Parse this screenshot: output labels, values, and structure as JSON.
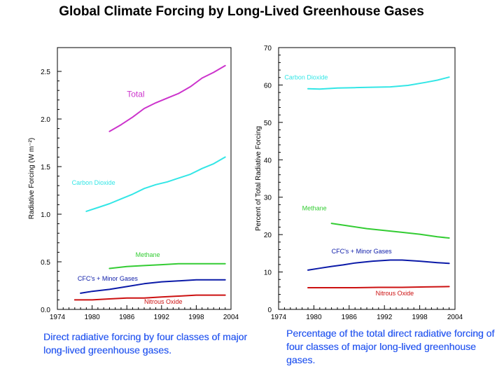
{
  "title": "Global Climate Forcing by Long-Lived Greenhouse Gases",
  "captions": {
    "left": "Direct radiative forcing by four classes of major long-lived greenhouse gases.",
    "right": "Percentage of the total direct radiative forcing of four classes of major long-lived greenhouse gases."
  },
  "chart_data": [
    {
      "type": "line",
      "title": "",
      "xlabel": "",
      "ylabel": "Radiative Forcing (W m⁻²)",
      "xlim": [
        1974,
        2004
      ],
      "ylim": [
        0,
        2.75
      ],
      "x_ticks": [
        1974,
        1980,
        1986,
        1992,
        1998,
        2004
      ],
      "y_ticks": [
        0.0,
        0.5,
        1.0,
        1.5,
        2.0,
        2.5
      ],
      "y_tick_labels": [
        "0.0",
        "0.5",
        "1.0",
        "1.5",
        "2.0",
        "2.5"
      ],
      "grid": false,
      "legend": "none",
      "series": [
        {
          "name": "Total",
          "color": "#cc33cc",
          "label_pos": [
            1986,
            2.23
          ],
          "x": [
            1983,
            1985,
            1987,
            1989,
            1991,
            1993,
            1995,
            1997,
            1999,
            2001,
            2003
          ],
          "y": [
            1.87,
            1.94,
            2.02,
            2.11,
            2.17,
            2.22,
            2.27,
            2.34,
            2.43,
            2.49,
            2.56
          ]
        },
        {
          "name": "Carbon Dioxide",
          "color": "#33e6e6",
          "label_pos": [
            1976.5,
            1.31
          ],
          "x": [
            1979,
            1981,
            1983,
            1985,
            1987,
            1989,
            1991,
            1993,
            1995,
            1997,
            1999,
            2001,
            2003
          ],
          "y": [
            1.03,
            1.07,
            1.11,
            1.16,
            1.21,
            1.27,
            1.31,
            1.34,
            1.38,
            1.42,
            1.48,
            1.53,
            1.6
          ]
        },
        {
          "name": "Methane",
          "color": "#33cc33",
          "label_pos": [
            1987.5,
            0.55
          ],
          "x": [
            1983,
            1986,
            1989,
            1992,
            1995,
            1998,
            2001,
            2003
          ],
          "y": [
            0.43,
            0.45,
            0.46,
            0.47,
            0.48,
            0.48,
            0.48,
            0.48
          ]
        },
        {
          "name": "CFC's + Minor Gases",
          "color": "#0b1aa8",
          "label_pos": [
            1977.5,
            0.3
          ],
          "x": [
            1978,
            1980,
            1983,
            1986,
            1989,
            1992,
            1995,
            1998,
            2001,
            2003
          ],
          "y": [
            0.17,
            0.19,
            0.21,
            0.24,
            0.27,
            0.29,
            0.3,
            0.31,
            0.31,
            0.31
          ]
        },
        {
          "name": "Nitrous Oxide",
          "color": "#cc1111",
          "label_pos": [
            1989,
            0.06
          ],
          "x": [
            1977,
            1980,
            1983,
            1986,
            1989,
            1992,
            1995,
            1998,
            2001,
            2003
          ],
          "y": [
            0.1,
            0.1,
            0.11,
            0.12,
            0.12,
            0.13,
            0.14,
            0.15,
            0.15,
            0.15
          ]
        }
      ]
    },
    {
      "type": "line",
      "title": "",
      "xlabel": "",
      "ylabel": "Percent of Total Radiative Forcing",
      "xlim": [
        1974,
        2004
      ],
      "ylim": [
        0,
        70
      ],
      "x_ticks": [
        1974,
        1980,
        1986,
        1992,
        1998,
        2004
      ],
      "y_ticks": [
        0,
        10,
        20,
        30,
        40,
        50,
        60,
        70
      ],
      "y_tick_labels": [
        "0",
        "10",
        "20",
        "30",
        "40",
        "50",
        "60",
        "70"
      ],
      "grid": false,
      "legend": "none",
      "series": [
        {
          "name": "Carbon Dioxide",
          "color": "#33e6e6",
          "label_pos": [
            1975,
            61.5
          ],
          "x": [
            1979,
            1981,
            1984,
            1987,
            1990,
            1993,
            1996,
            1999,
            2001,
            2003
          ],
          "y": [
            59.0,
            58.9,
            59.2,
            59.3,
            59.4,
            59.5,
            59.9,
            60.7,
            61.3,
            62.1
          ]
        },
        {
          "name": "Methane",
          "color": "#33cc33",
          "label_pos": [
            1978,
            26.5
          ],
          "x": [
            1983,
            1986,
            1989,
            1992,
            1995,
            1998,
            2001,
            2003
          ],
          "y": [
            23.0,
            22.3,
            21.6,
            21.1,
            20.6,
            20.1,
            19.4,
            19.1
          ]
        },
        {
          "name": "CFC's + Minor Gases",
          "color": "#0b1aa8",
          "label_pos": [
            1983,
            15.0
          ],
          "x": [
            1979,
            1981,
            1983,
            1985,
            1987,
            1990,
            1993,
            1995,
            1998,
            2001,
            2003
          ],
          "y": [
            10.5,
            11.0,
            11.5,
            11.9,
            12.4,
            12.9,
            13.2,
            13.2,
            12.9,
            12.5,
            12.3
          ]
        },
        {
          "name": "Nitrous Oxide",
          "color": "#cc1111",
          "label_pos": [
            1990.5,
            3.7
          ],
          "x": [
            1979,
            1983,
            1987,
            1991,
            1995,
            1999,
            2003
          ],
          "y": [
            5.8,
            5.8,
            5.8,
            5.9,
            5.9,
            6.0,
            6.1
          ]
        }
      ]
    }
  ]
}
